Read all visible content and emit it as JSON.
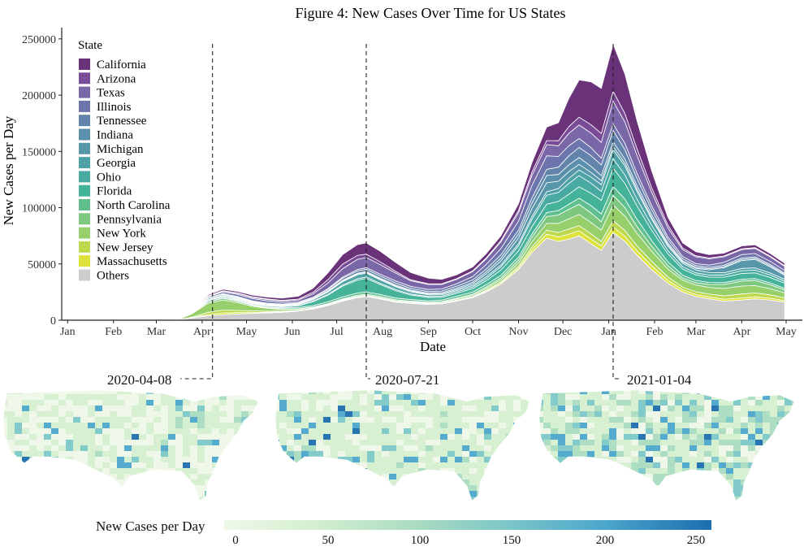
{
  "chart_data": {
    "type": "area",
    "title": "Figure 4: New Cases Over Time for US States",
    "xlabel": "Date",
    "ylabel": "New Cases per Day",
    "ylim": [
      0,
      260000
    ],
    "yticks": [
      0,
      50000,
      100000,
      150000,
      200000,
      250000
    ],
    "ytick_labels": [
      "0",
      "50000",
      "100000",
      "150000",
      "200000",
      "250000"
    ],
    "xticks": [
      "Jan",
      "Feb",
      "Mar",
      "Apr",
      "May",
      "Jun",
      "Jul",
      "Aug",
      "Sep",
      "Oct",
      "Nov",
      "Dec",
      "Jan",
      "Feb",
      "Mar",
      "Apr",
      "May"
    ],
    "legend": {
      "title": "State",
      "position": "top-left",
      "entries": [
        {
          "name": "California",
          "color": "#6a3279"
        },
        {
          "name": "Arizona",
          "color": "#7a4b96"
        },
        {
          "name": "Texas",
          "color": "#7a67a8"
        },
        {
          "name": "Illinois",
          "color": "#6d75ad"
        },
        {
          "name": "Tennessee",
          "color": "#6384aa"
        },
        {
          "name": "Indiana",
          "color": "#5c8fab"
        },
        {
          "name": "Michigan",
          "color": "#5797a9"
        },
        {
          "name": "Georgia",
          "color": "#4fa2a6"
        },
        {
          "name": "Ohio",
          "color": "#48aaa1"
        },
        {
          "name": "Florida",
          "color": "#45b39a"
        },
        {
          "name": "North Carolina",
          "color": "#5fbf8e"
        },
        {
          "name": "Pennsylvania",
          "color": "#7dc77e"
        },
        {
          "name": "New York",
          "color": "#97cf6a"
        },
        {
          "name": "New Jersey",
          "color": "#bcd84d"
        },
        {
          "name": "Massachusetts",
          "color": "#dde33a"
        },
        {
          "name": "Others",
          "color": "#cccccc"
        }
      ]
    },
    "x": [
      "2020-03-15",
      "2020-03-25",
      "2020-04-05",
      "2020-04-15",
      "2020-04-25",
      "2020-05-05",
      "2020-05-15",
      "2020-05-25",
      "2020-06-05",
      "2020-06-15",
      "2020-06-25",
      "2020-07-05",
      "2020-07-15",
      "2020-07-21",
      "2020-07-30",
      "2020-08-10",
      "2020-08-20",
      "2020-09-01",
      "2020-09-10",
      "2020-09-20",
      "2020-10-01",
      "2020-10-10",
      "2020-10-20",
      "2020-11-01",
      "2020-11-10",
      "2020-11-20",
      "2020-11-28",
      "2020-12-05",
      "2020-12-12",
      "2020-12-20",
      "2020-12-27",
      "2021-01-04",
      "2021-01-12",
      "2021-01-20",
      "2021-01-30",
      "2021-02-10",
      "2021-02-20",
      "2021-03-01",
      "2021-03-10",
      "2021-03-20",
      "2021-04-01",
      "2021-04-10",
      "2021-04-20",
      "2021-04-30"
    ],
    "series": [
      {
        "name": "Others",
        "values": [
          0,
          2000,
          4000,
          5000,
          5500,
          6000,
          6500,
          7000,
          8000,
          10000,
          13000,
          17000,
          20000,
          21000,
          19000,
          16000,
          15000,
          14000,
          14500,
          17000,
          20000,
          25000,
          32000,
          45000,
          60000,
          73000,
          70000,
          72000,
          75000,
          68000,
          62000,
          78000,
          70000,
          58000,
          45000,
          33000,
          25000,
          21000,
          19000,
          17000,
          18000,
          19000,
          18000,
          16000
        ]
      },
      {
        "name": "Massachusetts",
        "values": [
          0,
          200,
          1000,
          1500,
          1200,
          800,
          600,
          400,
          300,
          300,
          300,
          300,
          300,
          300,
          300,
          300,
          300,
          300,
          300,
          400,
          500,
          800,
          1000,
          1500,
          2500,
          3500,
          4000,
          4500,
          4500,
          4300,
          4000,
          5000,
          4500,
          4000,
          3500,
          2500,
          2000,
          1800,
          1700,
          1700,
          1800,
          1800,
          1600,
          1400
        ]
      },
      {
        "name": "New Jersey",
        "values": [
          0,
          500,
          2000,
          2500,
          2000,
          1500,
          1000,
          700,
          500,
          300,
          300,
          300,
          300,
          300,
          300,
          300,
          300,
          300,
          300,
          400,
          500,
          800,
          1000,
          1500,
          2500,
          3500,
          4000,
          4500,
          4500,
          4500,
          4000,
          5500,
          5000,
          4500,
          4000,
          3000,
          2500,
          2500,
          2500,
          3000,
          3500,
          3500,
          3000,
          2500
        ]
      },
      {
        "name": "New York",
        "values": [
          0,
          3000,
          8000,
          9000,
          7000,
          4000,
          2500,
          1500,
          1000,
          700,
          600,
          600,
          700,
          700,
          700,
          700,
          700,
          700,
          800,
          1000,
          1200,
          1500,
          2000,
          3000,
          4500,
          6000,
          8000,
          9000,
          10000,
          10000,
          10000,
          14000,
          13000,
          11000,
          9000,
          7000,
          6000,
          6000,
          6000,
          6500,
          7000,
          6500,
          5500,
          4500
        ]
      },
      {
        "name": "Pennsylvania",
        "values": [
          0,
          300,
          1200,
          1500,
          1200,
          900,
          600,
          500,
          400,
          400,
          500,
          700,
          900,
          900,
          900,
          800,
          700,
          600,
          600,
          700,
          900,
          1200,
          1500,
          2500,
          4000,
          6000,
          7500,
          8500,
          9000,
          8500,
          7500,
          8500,
          7500,
          6000,
          4500,
          3000,
          2000,
          2000,
          2500,
          3500,
          4500,
          4500,
          3500,
          2500
        ]
      },
      {
        "name": "North Carolina",
        "values": [
          0,
          100,
          300,
          400,
          500,
          600,
          700,
          900,
          1100,
          1300,
          1600,
          1900,
          2000,
          2000,
          1800,
          1600,
          1400,
          1300,
          1400,
          1800,
          2000,
          2200,
          2400,
          2600,
          3000,
          3600,
          4000,
          4500,
          5500,
          6500,
          7000,
          8000,
          7500,
          6500,
          5000,
          3500,
          2500,
          2000,
          1800,
          1700,
          1700,
          1700,
          1600,
          1500
        ]
      },
      {
        "name": "Florida",
        "values": [
          0,
          400,
          1000,
          1000,
          800,
          700,
          800,
          900,
          1500,
          3500,
          6000,
          9500,
          11500,
          12000,
          9000,
          6500,
          4000,
          3000,
          2500,
          2500,
          3000,
          3500,
          4500,
          5500,
          6500,
          7500,
          8000,
          9000,
          10000,
          11000,
          12000,
          16000,
          14000,
          12000,
          9000,
          7000,
          5500,
          5000,
          4800,
          4800,
          5000,
          5000,
          4800,
          4500
        ]
      },
      {
        "name": "Ohio",
        "values": [
          0,
          100,
          300,
          400,
          500,
          500,
          500,
          500,
          400,
          500,
          700,
          1000,
          1200,
          1200,
          1100,
          1000,
          900,
          900,
          1000,
          1200,
          1500,
          2000,
          3000,
          4500,
          6500,
          8000,
          8000,
          9500,
          10000,
          9000,
          8000,
          8500,
          7500,
          6000,
          4500,
          3000,
          2000,
          1800,
          1800,
          2000,
          2500,
          2500,
          2200,
          1800
        ]
      },
      {
        "name": "Georgia",
        "values": [
          0,
          200,
          500,
          700,
          700,
          600,
          600,
          700,
          800,
          1200,
          2000,
          3000,
          3500,
          3500,
          3000,
          2500,
          2000,
          1500,
          1300,
          1300,
          1400,
          1500,
          1600,
          2000,
          2500,
          3000,
          3500,
          4500,
          5000,
          5500,
          6000,
          8000,
          8000,
          7000,
          5500,
          4000,
          3000,
          2500,
          2200,
          2000,
          2000,
          2000,
          1900,
          1700
        ]
      },
      {
        "name": "Michigan",
        "values": [
          0,
          400,
          1000,
          900,
          700,
          500,
          400,
          300,
          300,
          300,
          500,
          600,
          700,
          700,
          700,
          700,
          700,
          700,
          800,
          1000,
          1500,
          2500,
          3500,
          5000,
          7000,
          8000,
          6500,
          6000,
          5000,
          4000,
          3500,
          3000,
          2500,
          2000,
          1500,
          1200,
          1200,
          1500,
          2500,
          4500,
          7000,
          7500,
          5500,
          3500
        ]
      },
      {
        "name": "Indiana",
        "values": [
          0,
          100,
          300,
          400,
          500,
          500,
          500,
          400,
          400,
          400,
          500,
          600,
          700,
          700,
          800,
          800,
          800,
          800,
          900,
          1000,
          1300,
          1800,
          2500,
          3500,
          5000,
          6500,
          6000,
          6000,
          6000,
          5500,
          4500,
          4000,
          3500,
          3000,
          2500,
          1500,
          1000,
          900,
          900,
          1000,
          1100,
          1100,
          1000,
          900
        ]
      },
      {
        "name": "Tennessee",
        "values": [
          0,
          100,
          200,
          300,
          400,
          500,
          500,
          500,
          600,
          800,
          1200,
          1800,
          2000,
          2000,
          2000,
          1800,
          1500,
          1400,
          1500,
          1800,
          2000,
          2500,
          3000,
          3500,
          4500,
          5500,
          6500,
          8000,
          9000,
          9500,
          9500,
          10000,
          8500,
          6500,
          4500,
          3000,
          2000,
          1500,
          1300,
          1200,
          1200,
          1200,
          1100,
          1000
        ]
      },
      {
        "name": "Illinois",
        "values": [
          0,
          300,
          1000,
          1500,
          2000,
          2200,
          2000,
          1500,
          900,
          700,
          800,
          1000,
          1300,
          1400,
          1600,
          1800,
          1800,
          1800,
          1900,
          2200,
          3000,
          4000,
          5500,
          8000,
          11000,
          12000,
          9500,
          9000,
          8000,
          7000,
          6000,
          6000,
          5500,
          4500,
          3500,
          2500,
          2000,
          1800,
          2000,
          2500,
          3000,
          3000,
          2800,
          2500
        ]
      },
      {
        "name": "Texas",
        "values": [
          0,
          200,
          700,
          900,
          1000,
          1100,
          1200,
          1300,
          1800,
          3000,
          5000,
          7500,
          9000,
          9000,
          8500,
          7000,
          5000,
          4500,
          4000,
          4000,
          4500,
          5000,
          6000,
          7500,
          9000,
          10000,
          9500,
          11000,
          12000,
          13000,
          14000,
          20000,
          19000,
          16000,
          12000,
          8000,
          6000,
          6000,
          5500,
          5000,
          4500,
          4500,
          4000,
          3500
        ]
      },
      {
        "name": "Arizona",
        "values": [
          0,
          100,
          200,
          300,
          300,
          400,
          500,
          500,
          800,
          1500,
          3000,
          4000,
          3500,
          3000,
          2500,
          1500,
          800,
          600,
          500,
          500,
          600,
          800,
          1200,
          2000,
          3000,
          3500,
          4500,
          6000,
          7000,
          7500,
          8000,
          9000,
          7500,
          6000,
          4000,
          2500,
          1500,
          1000,
          800,
          700,
          700,
          700,
          700,
          600
        ]
      },
      {
        "name": "California",
        "values": [
          0,
          500,
          1000,
          1200,
          1300,
          1500,
          1700,
          2000,
          2500,
          3500,
          6000,
          8500,
          9500,
          10000,
          9500,
          8000,
          6500,
          5000,
          4000,
          3500,
          3500,
          3800,
          4200,
          6000,
          8500,
          12000,
          16000,
          25000,
          33000,
          38000,
          40000,
          42000,
          35000,
          25000,
          15000,
          7000,
          4500,
          3500,
          3000,
          2500,
          2500,
          2500,
          2300,
          2200
        ]
      }
    ],
    "annotations": [
      {
        "date": "2020-04-08",
        "label": "2020-04-08"
      },
      {
        "date": "2020-07-21",
        "label": "2020-07-21"
      },
      {
        "date": "2021-01-04",
        "label": "2021-01-04"
      }
    ]
  },
  "maps": [
    {
      "date": "2020-04-08",
      "label": "2020-04-08"
    },
    {
      "date": "2020-07-21",
      "label": "2020-07-21"
    },
    {
      "date": "2021-01-04",
      "label": "2021-01-04"
    }
  ],
  "colorbar": {
    "title": "New Cases per Day",
    "min": 0,
    "max": 260,
    "ticks": [
      "0",
      "50",
      "100",
      "150",
      "200",
      "250"
    ],
    "colors": [
      "#eef8e8",
      "#d5efd1",
      "#a9dbc0",
      "#7cc7c8",
      "#4ba6cc",
      "#1c6eae"
    ]
  }
}
